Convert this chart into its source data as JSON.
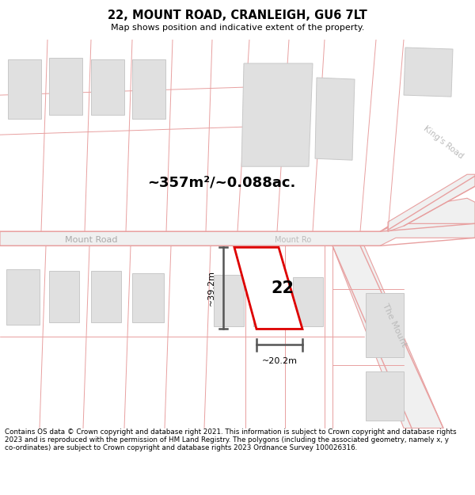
{
  "title": "22, MOUNT ROAD, CRANLEIGH, GU6 7LT",
  "subtitle": "Map shows position and indicative extent of the property.",
  "footer": "Contains OS data © Crown copyright and database right 2021. This information is subject to Crown copyright and database rights 2023 and is reproduced with the permission of HM Land Registry. The polygons (including the associated geometry, namely x, y co-ordinates) are subject to Crown copyright and database rights 2023 Ordnance Survey 100026316.",
  "area_label": "~357m²/~0.088ac.",
  "property_number": "22",
  "dim_height": "~39.2m",
  "dim_width": "~20.2m",
  "map_bg": "#f8f8f8",
  "road_line": "#e8a0a0",
  "road_fill": "#efefef",
  "building_fill": "#e0e0e0",
  "building_line": "#c8c8c8",
  "property_line": "#dd0000",
  "property_fill": "#ffffff",
  "dim_line_color": "#555555"
}
